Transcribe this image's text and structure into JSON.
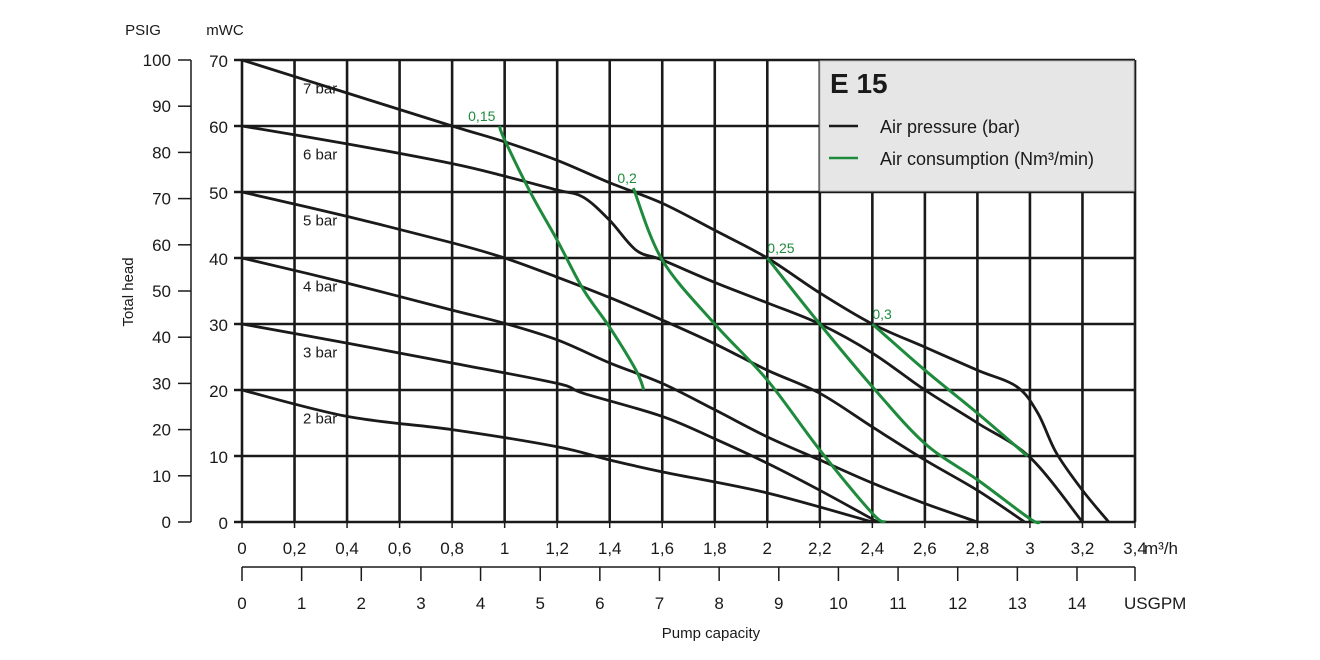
{
  "chart_data": {
    "type": "line",
    "title": "E 15",
    "xlabel": "Pump capacity",
    "x_unit": "m³/h",
    "x2_unit": "USGPM",
    "y_unit_left": "PSIG",
    "y_unit_right": "mWC",
    "ylabel": "Total head",
    "xlim": [
      0,
      3.4
    ],
    "ylim_mwc": [
      0,
      70
    ],
    "ylim_psig": [
      0,
      100
    ],
    "grid": true,
    "legend_position": "top-right",
    "x_ticks": [
      "0",
      "0,2",
      "0,4",
      "0,6",
      "0,8",
      "1",
      "1,2",
      "1,4",
      "1,6",
      "1,8",
      "2",
      "2,2",
      "2,4",
      "2,6",
      "2,8",
      "3",
      "3,2",
      "3,4"
    ],
    "x2_ticks": [
      "0",
      "1",
      "2",
      "3",
      "4",
      "5",
      "6",
      "7",
      "8",
      "9",
      "10",
      "11",
      "12",
      "13",
      "14"
    ],
    "y_mwc_ticks": [
      "0",
      "10",
      "20",
      "30",
      "40",
      "50",
      "60",
      "70"
    ],
    "y_psig_ticks": [
      "0",
      "10",
      "20",
      "30",
      "40",
      "50",
      "60",
      "70",
      "80",
      "90",
      "100"
    ],
    "legend": [
      {
        "label": "Air pressure (bar)",
        "color": "#1a1a1a"
      },
      {
        "label": "Air consumption (Nm³/min)",
        "color": "#1e8a3c"
      }
    ],
    "pressure_series": [
      {
        "name": "7 bar",
        "points": [
          [
            0,
            70
          ],
          [
            0.4,
            65
          ],
          [
            0.8,
            60
          ],
          [
            1.0,
            57.6
          ],
          [
            1.2,
            54.8
          ],
          [
            1.4,
            51.4
          ],
          [
            1.6,
            48.3
          ],
          [
            1.8,
            44.2
          ],
          [
            2.0,
            40
          ],
          [
            2.2,
            34.7
          ],
          [
            2.4,
            30
          ],
          [
            2.6,
            26.5
          ],
          [
            2.8,
            23
          ],
          [
            2.95,
            20.5
          ],
          [
            3.03,
            16.5
          ],
          [
            3.1,
            10.5
          ],
          [
            3.2,
            4.8
          ],
          [
            3.3,
            0
          ]
        ]
      },
      {
        "name": "6 bar",
        "points": [
          [
            0,
            60
          ],
          [
            0.4,
            57.3
          ],
          [
            0.8,
            54.3
          ],
          [
            1.0,
            52.4
          ],
          [
            1.2,
            50.3
          ],
          [
            1.3,
            49.2
          ],
          [
            1.4,
            45.7
          ],
          [
            1.5,
            41.2
          ],
          [
            1.6,
            39.7
          ],
          [
            1.8,
            36.3
          ],
          [
            2.0,
            33.2
          ],
          [
            2.2,
            30
          ],
          [
            2.4,
            25.6
          ],
          [
            2.6,
            20
          ],
          [
            2.8,
            15
          ],
          [
            3.0,
            9.8
          ],
          [
            3.2,
            0
          ]
        ]
      },
      {
        "name": "5 bar",
        "points": [
          [
            0,
            50
          ],
          [
            0.4,
            46.3
          ],
          [
            0.8,
            42.3
          ],
          [
            1.0,
            40
          ],
          [
            1.2,
            37.1
          ],
          [
            1.4,
            34
          ],
          [
            1.6,
            30.6
          ],
          [
            1.8,
            27
          ],
          [
            2.0,
            23
          ],
          [
            2.2,
            19.5
          ],
          [
            2.4,
            14.4
          ],
          [
            2.6,
            9.4
          ],
          [
            2.8,
            4.8
          ],
          [
            2.98,
            0
          ]
        ]
      },
      {
        "name": "4 bar",
        "points": [
          [
            0,
            40
          ],
          [
            0.4,
            36.2
          ],
          [
            0.8,
            32.1
          ],
          [
            1.0,
            30.1
          ],
          [
            1.2,
            27.6
          ],
          [
            1.4,
            24.1
          ],
          [
            1.6,
            21
          ],
          [
            1.8,
            17
          ],
          [
            2.0,
            12.9
          ],
          [
            2.2,
            9.4
          ],
          [
            2.4,
            5.9
          ],
          [
            2.6,
            2.8
          ],
          [
            2.8,
            0
          ]
        ]
      },
      {
        "name": "3 bar",
        "points": [
          [
            0,
            30
          ],
          [
            0.4,
            27.1
          ],
          [
            0.8,
            24.1
          ],
          [
            1.2,
            21
          ],
          [
            1.3,
            19.5
          ],
          [
            1.6,
            16
          ],
          [
            1.8,
            12.6
          ],
          [
            2.0,
            8.9
          ],
          [
            2.2,
            4.8
          ],
          [
            2.42,
            0
          ]
        ]
      },
      {
        "name": "2 bar",
        "points": [
          [
            0,
            20
          ],
          [
            0.4,
            16
          ],
          [
            0.8,
            14
          ],
          [
            1.2,
            11.4
          ],
          [
            1.4,
            9.4
          ],
          [
            1.6,
            7.6
          ],
          [
            2.0,
            4.4
          ],
          [
            2.4,
            0
          ]
        ]
      }
    ],
    "consumption_series": [
      {
        "name": "0,15",
        "points": [
          [
            0.98,
            60
          ],
          [
            1.0,
            57.9
          ],
          [
            1.1,
            49.8
          ],
          [
            1.2,
            42.7
          ],
          [
            1.3,
            35.2
          ],
          [
            1.4,
            29.5
          ],
          [
            1.5,
            23
          ],
          [
            1.53,
            20
          ]
        ]
      },
      {
        "name": "0,2",
        "points": [
          [
            1.49,
            50.6
          ],
          [
            1.6,
            39.7
          ],
          [
            1.8,
            30
          ],
          [
            2.0,
            21.5
          ],
          [
            2.2,
            10.9
          ],
          [
            2.4,
            1.3
          ],
          [
            2.45,
            0
          ]
        ]
      },
      {
        "name": "0,25",
        "points": [
          [
            2.0,
            40
          ],
          [
            2.2,
            30
          ],
          [
            2.4,
            20.5
          ],
          [
            2.6,
            11.9
          ],
          [
            2.8,
            6.4
          ],
          [
            3.0,
            0.5
          ],
          [
            3.04,
            0
          ]
        ]
      },
      {
        "name": "0,3",
        "points": [
          [
            2.4,
            30
          ],
          [
            2.6,
            23
          ],
          [
            2.8,
            16.5
          ],
          [
            2.99,
            10
          ]
        ]
      }
    ]
  }
}
